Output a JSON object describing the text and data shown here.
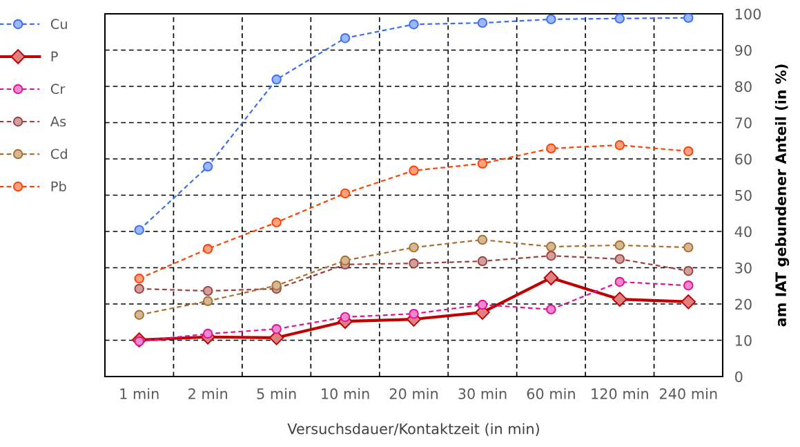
{
  "chart_data": {
    "type": "line",
    "xlabel": "Versuchsdauer/Kontaktzeit (in min)",
    "ylabel": "am IAT gebundener Anteil (in %)",
    "categories": [
      "1 min",
      "2 min",
      "5 min",
      "10 min",
      "20 min",
      "30 min",
      "60 min",
      "120 min",
      "240 min"
    ],
    "ylim": [
      0,
      100
    ],
    "yticks": [
      0,
      10,
      20,
      30,
      40,
      50,
      60,
      70,
      80,
      90,
      100
    ],
    "grid": true,
    "legend": "left",
    "series": [
      {
        "name": "Cu",
        "color": "#3a6ff7",
        "marker": "circle",
        "line_style": "dashed",
        "values": [
          40.4,
          57.9,
          81.9,
          93.3,
          97.1,
          97.5,
          98.5,
          98.7,
          98.9
        ]
      },
      {
        "name": "P",
        "color": "#c00000",
        "marker": "diamond",
        "line_style": "solid",
        "values": [
          10.1,
          10.9,
          10.7,
          15.2,
          15.8,
          17.7,
          27.2,
          21.3,
          20.6
        ]
      },
      {
        "name": "Cr",
        "color": "#e0109a",
        "marker": "circle",
        "line_style": "dashed",
        "values": [
          9.7,
          11.8,
          13.1,
          16.4,
          17.3,
          19.8,
          18.5,
          26.1,
          25.1
        ]
      },
      {
        "name": "As",
        "color": "#a0403c",
        "marker": "circle",
        "line_style": "dashed",
        "values": [
          24.2,
          23.6,
          24.2,
          30.9,
          31.2,
          31.8,
          33.3,
          32.4,
          29.1
        ]
      },
      {
        "name": "Cd",
        "color": "#a8702e",
        "marker": "circle",
        "line_style": "dashed",
        "values": [
          17.0,
          20.8,
          25.1,
          32.0,
          35.6,
          37.7,
          35.8,
          36.2,
          35.6
        ]
      },
      {
        "name": "Pb",
        "color": "#ff4000",
        "marker": "circle",
        "line_style": "dashed",
        "values": [
          27.0,
          35.2,
          42.5,
          50.5,
          56.8,
          58.7,
          62.9,
          63.8,
          62.1
        ]
      }
    ]
  }
}
